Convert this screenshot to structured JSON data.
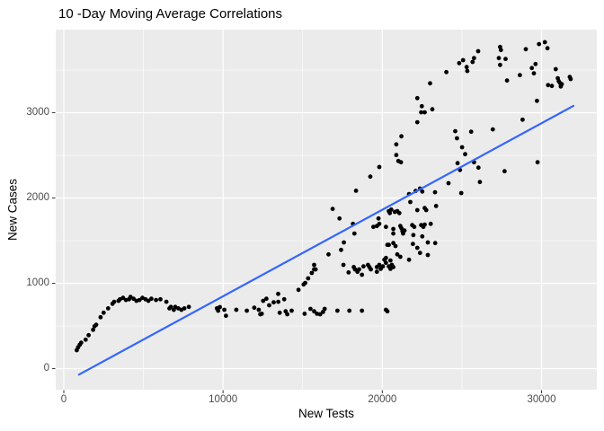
{
  "colors": {
    "background": "#FFFFFF",
    "panel": "#EBEBEB",
    "grid": "#FFFFFF",
    "point": "#000000",
    "smooth_line": "#3366FF",
    "tick_mark": "#333333",
    "tick_text": "#4D4D4D",
    "axis_title_text": "#000000"
  },
  "chart_data": {
    "type": "scatter",
    "title": "10 -Day Moving Average Correlations",
    "xlabel": "New Tests",
    "ylabel": "New Cases",
    "xlim": [
      -508,
      33471
    ],
    "ylim": [
      -247,
      3974
    ],
    "x_major": [
      0,
      10000,
      20000,
      30000
    ],
    "x_minor": [
      5000,
      15000,
      25000
    ],
    "y_major": [
      0,
      1000,
      2000,
      3000
    ],
    "y_minor": [
      500,
      1500,
      2500,
      3500
    ],
    "x_tick_labels": [
      "0",
      "10000",
      "20000",
      "30000"
    ],
    "y_tick_labels": [
      "0",
      "1000",
      "2000",
      "3000"
    ],
    "grid": true,
    "legend": "none",
    "trend_line": {
      "type": "linear",
      "x1": 950,
      "y1": -70,
      "x2": 32000,
      "y2": 3080
    },
    "points": [
      [
        810,
        216
      ],
      [
        900,
        250
      ],
      [
        1000,
        279
      ],
      [
        1090,
        303
      ],
      [
        1370,
        339
      ],
      [
        1560,
        392
      ],
      [
        1840,
        455
      ],
      [
        1930,
        497
      ],
      [
        2030,
        514
      ],
      [
        2310,
        602
      ],
      [
        2500,
        655
      ],
      [
        2780,
        707
      ],
      [
        3060,
        760
      ],
      [
        3160,
        784
      ],
      [
        3440,
        795
      ],
      [
        3530,
        813
      ],
      [
        3720,
        830
      ],
      [
        3900,
        805
      ],
      [
        4100,
        813
      ],
      [
        4190,
        840
      ],
      [
        4380,
        819
      ],
      [
        4560,
        795
      ],
      [
        4750,
        805
      ],
      [
        4940,
        830
      ],
      [
        5130,
        813
      ],
      [
        5310,
        795
      ],
      [
        5500,
        819
      ],
      [
        5790,
        805
      ],
      [
        6070,
        813
      ],
      [
        6440,
        784
      ],
      [
        6630,
        707
      ],
      [
        6720,
        724
      ],
      [
        6910,
        690
      ],
      [
        7000,
        724
      ],
      [
        7190,
        707
      ],
      [
        7380,
        690
      ],
      [
        7570,
        707
      ],
      [
        7850,
        724
      ],
      [
        9610,
        707
      ],
      [
        9690,
        679
      ],
      [
        9800,
        721
      ],
      [
        10080,
        690
      ],
      [
        10180,
        619
      ],
      [
        10830,
        690
      ],
      [
        11490,
        679
      ],
      [
        11960,
        714
      ],
      [
        12240,
        690
      ],
      [
        12340,
        637
      ],
      [
        12430,
        644
      ],
      [
        12520,
        795
      ],
      [
        12720,
        819
      ],
      [
        12900,
        742
      ],
      [
        13180,
        777
      ],
      [
        13460,
        876
      ],
      [
        13470,
        784
      ],
      [
        13560,
        655
      ],
      [
        13840,
        813
      ],
      [
        13930,
        672
      ],
      [
        14030,
        637
      ],
      [
        14310,
        679
      ],
      [
        15120,
        644
      ],
      [
        15490,
        700
      ],
      [
        15720,
        672
      ],
      [
        15900,
        644
      ],
      [
        16100,
        637
      ],
      [
        16280,
        665
      ],
      [
        16380,
        700
      ],
      [
        17180,
        679
      ],
      [
        17930,
        679
      ],
      [
        18720,
        679
      ],
      [
        20230,
        690
      ],
      [
        20320,
        672
      ],
      [
        14740,
        924
      ],
      [
        15060,
        987
      ],
      [
        15160,
        1005
      ],
      [
        15340,
        1058
      ],
      [
        15570,
        1121
      ],
      [
        15720,
        1163
      ],
      [
        17880,
        1128
      ],
      [
        18440,
        1135
      ],
      [
        18540,
        1163
      ],
      [
        18720,
        1100
      ],
      [
        19280,
        1163
      ],
      [
        19660,
        1135
      ],
      [
        15720,
        1216
      ],
      [
        15810,
        1163
      ],
      [
        16620,
        1339
      ],
      [
        17410,
        1392
      ],
      [
        17560,
        1216
      ],
      [
        17590,
        1479
      ],
      [
        18210,
        1191
      ],
      [
        18290,
        1163
      ],
      [
        18820,
        1198
      ],
      [
        19100,
        1216
      ],
      [
        19190,
        1191
      ],
      [
        19660,
        1191
      ],
      [
        19810,
        1216
      ],
      [
        19900,
        1170
      ],
      [
        20040,
        1198
      ],
      [
        20130,
        1276
      ],
      [
        20230,
        1240
      ],
      [
        20410,
        1198
      ],
      [
        20510,
        1170
      ],
      [
        20230,
        1297
      ],
      [
        20510,
        1268
      ],
      [
        20600,
        1216
      ],
      [
        20690,
        1191
      ],
      [
        20940,
        1339
      ],
      [
        21130,
        1311
      ],
      [
        21680,
        1276
      ],
      [
        22370,
        1356
      ],
      [
        22860,
        1332
      ],
      [
        20320,
        1451
      ],
      [
        20830,
        1437
      ],
      [
        21920,
        1461
      ],
      [
        22200,
        1416
      ],
      [
        22860,
        1479
      ],
      [
        23320,
        1472
      ],
      [
        20690,
        1584
      ],
      [
        20410,
        1451
      ],
      [
        20690,
        1472
      ],
      [
        20230,
        1661
      ],
      [
        20690,
        1637
      ],
      [
        19440,
        1661
      ],
      [
        19760,
        1760
      ],
      [
        20470,
        1823
      ],
      [
        19810,
        1697
      ],
      [
        19660,
        1672
      ],
      [
        21130,
        1672
      ],
      [
        21200,
        1647
      ],
      [
        21260,
        1613
      ],
      [
        21310,
        1584
      ],
      [
        21390,
        1619
      ],
      [
        21880,
        1682
      ],
      [
        22010,
        1661
      ],
      [
        22440,
        1682
      ],
      [
        22580,
        1661
      ],
      [
        22660,
        1689
      ],
      [
        23040,
        1697
      ],
      [
        21950,
        1566
      ],
      [
        22510,
        1550
      ],
      [
        16880,
        1872
      ],
      [
        17310,
        1760
      ],
      [
        18160,
        1697
      ],
      [
        18350,
        2086
      ],
      [
        19250,
        2251
      ],
      [
        19810,
        2363
      ],
      [
        18250,
        1584
      ],
      [
        23310,
        2068
      ],
      [
        21680,
        2047
      ],
      [
        22090,
        2082
      ],
      [
        22370,
        2111
      ],
      [
        22510,
        2076
      ],
      [
        20560,
        1865
      ],
      [
        20410,
        1847
      ],
      [
        20790,
        1837
      ],
      [
        20940,
        1847
      ],
      [
        21070,
        1823
      ],
      [
        21760,
        1953
      ],
      [
        22200,
        1858
      ],
      [
        22660,
        1882
      ],
      [
        22760,
        1858
      ],
      [
        23380,
        1907
      ],
      [
        24160,
        2174
      ],
      [
        26130,
        2188
      ],
      [
        24960,
        2058
      ],
      [
        23000,
        3345
      ],
      [
        22200,
        3171
      ],
      [
        22480,
        3076
      ],
      [
        22440,
        3005
      ],
      [
        22660,
        3005
      ],
      [
        23140,
        3040
      ],
      [
        22200,
        2889
      ],
      [
        21200,
        2724
      ],
      [
        20880,
        2629
      ],
      [
        20880,
        2503
      ],
      [
        21010,
        2434
      ],
      [
        21170,
        2419
      ],
      [
        24580,
        2784
      ],
      [
        25580,
        2777
      ],
      [
        24690,
        2700
      ],
      [
        25010,
        2595
      ],
      [
        25200,
        2514
      ],
      [
        26940,
        2805
      ],
      [
        24730,
        2409
      ],
      [
        24880,
        2329
      ],
      [
        25760,
        2419
      ],
      [
        26040,
        2356
      ],
      [
        28810,
        2918
      ],
      [
        29750,
        2419
      ],
      [
        27680,
        2314
      ],
      [
        29710,
        3139
      ],
      [
        29520,
        3461
      ],
      [
        24020,
        3476
      ],
      [
        24830,
        3581
      ],
      [
        25070,
        3616
      ],
      [
        25300,
        3535
      ],
      [
        25340,
        3489
      ],
      [
        25670,
        3595
      ],
      [
        25760,
        3640
      ],
      [
        26020,
        3721
      ],
      [
        27400,
        3771
      ],
      [
        27450,
        3735
      ],
      [
        27320,
        3640
      ],
      [
        27400,
        3560
      ],
      [
        27740,
        3630
      ],
      [
        27830,
        3377
      ],
      [
        28640,
        3440
      ],
      [
        29010,
        3745
      ],
      [
        29390,
        3524
      ],
      [
        29620,
        3571
      ],
      [
        29840,
        3805
      ],
      [
        30210,
        3827
      ],
      [
        30370,
        3756
      ],
      [
        30410,
        3324
      ],
      [
        30650,
        3314
      ],
      [
        30890,
        3511
      ],
      [
        31020,
        3405
      ],
      [
        31080,
        3371
      ],
      [
        31150,
        3350
      ],
      [
        31210,
        3308
      ],
      [
        31270,
        3335
      ],
      [
        31770,
        3419
      ],
      [
        31830,
        3395
      ]
    ]
  }
}
